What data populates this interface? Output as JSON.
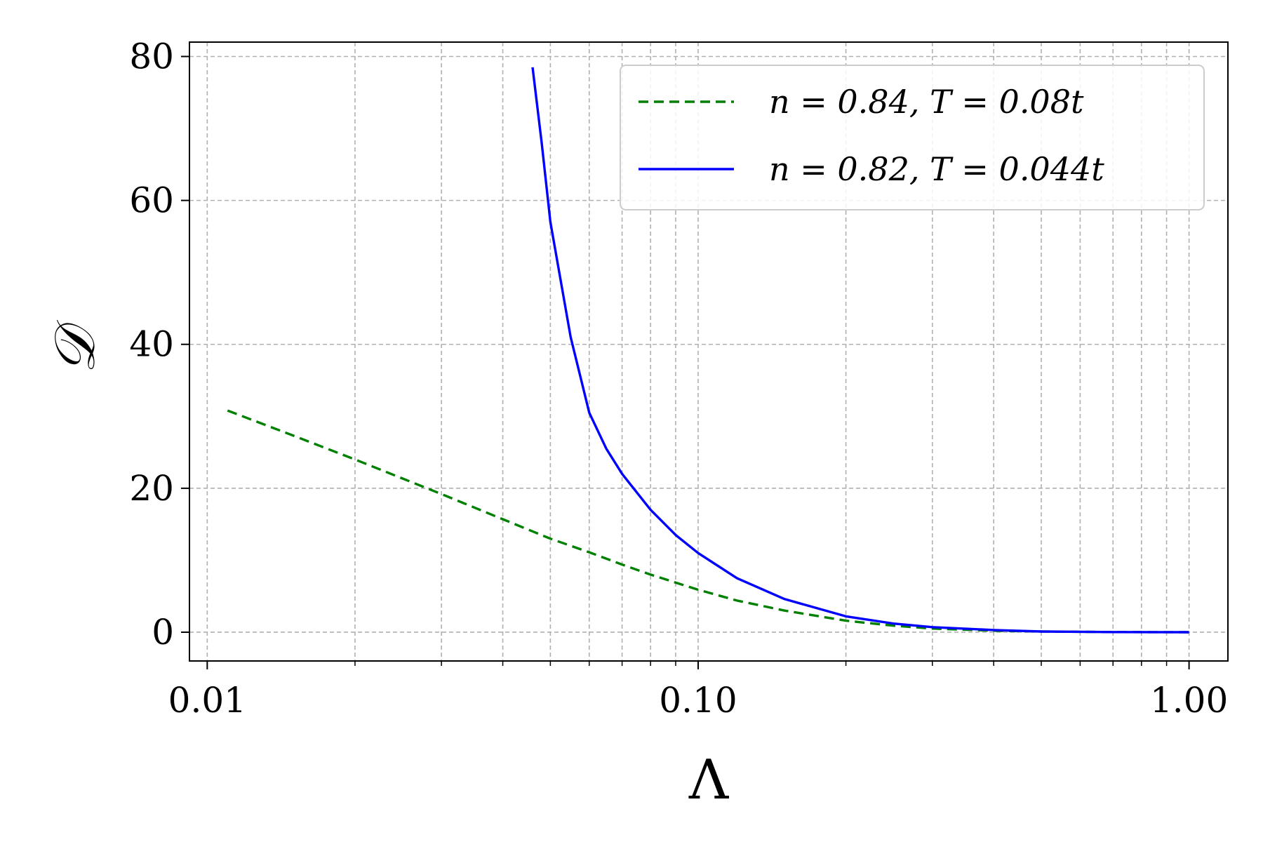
{
  "chart_data": {
    "type": "line",
    "x_scale": "log",
    "xlabel": "Λ",
    "ylabel": "𝒟",
    "xlim": [
      0.0092,
      1.2
    ],
    "ylim": [
      -4,
      82
    ],
    "x_ticks": [
      {
        "value": 0.01,
        "label": "0.01"
      },
      {
        "value": 0.1,
        "label": "0.10"
      },
      {
        "value": 1.0,
        "label": "1.00"
      }
    ],
    "y_ticks": [
      {
        "value": 0,
        "label": "0"
      },
      {
        "value": 20,
        "label": "20"
      },
      {
        "value": 40,
        "label": "40"
      },
      {
        "value": 60,
        "label": "60"
      },
      {
        "value": 80,
        "label": "80"
      }
    ],
    "grid": true,
    "legend_position": "top-right",
    "series": [
      {
        "name": "n = 0.84, T = 0.08t",
        "color": "#008000",
        "style": "dashed",
        "x": [
          0.011,
          0.015,
          0.02,
          0.03,
          0.04,
          0.05,
          0.06,
          0.07,
          0.08,
          0.1,
          0.12,
          0.15,
          0.2,
          0.25,
          0.3,
          0.4,
          0.5,
          0.7,
          1.0
        ],
        "y": [
          30.8,
          27.3,
          24.0,
          19.2,
          15.7,
          13.0,
          11.1,
          9.4,
          8.0,
          5.9,
          4.4,
          3.0,
          1.6,
          0.9,
          0.5,
          0.2,
          0.1,
          0.02,
          0.0
        ]
      },
      {
        "name": "n = 0.82, T = 0.044t",
        "color": "#0000ff",
        "style": "solid",
        "x": [
          0.046,
          0.048,
          0.05,
          0.055,
          0.06,
          0.065,
          0.07,
          0.08,
          0.09,
          0.1,
          0.12,
          0.15,
          0.2,
          0.25,
          0.3,
          0.4,
          0.5,
          0.7,
          1.0
        ],
        "y": [
          78.5,
          68.0,
          57.0,
          41.0,
          30.5,
          25.5,
          22.0,
          17.0,
          13.5,
          11.0,
          7.5,
          4.6,
          2.2,
          1.2,
          0.7,
          0.3,
          0.1,
          0.02,
          0.0
        ]
      }
    ]
  }
}
